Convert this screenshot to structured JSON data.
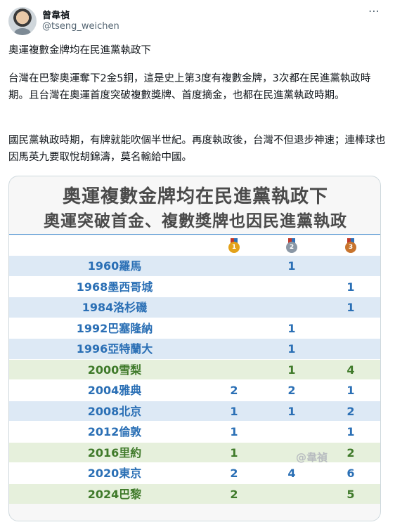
{
  "author": {
    "display_name": "曾韋禎",
    "handle": "@tseng_weichen"
  },
  "more_icon": "more-horizontal-icon",
  "tweet": {
    "line1": "奧運複數金牌均在民進黨執政下",
    "paragraph2": "台灣在巴黎奧運奪下2金5銅，這是史上第3度有複數金牌，3次都在民進黨執政時期。且台灣在奧運首度突破複數獎牌、首度摘金，也都在民進黨執政時期。",
    "paragraph3": "國民黨執政時期，有牌就能吹個半世紀。再度執政後，台灣不但退步神速；連棒球也因馬英九要取悅胡錦濤，莫名輸給中國。"
  },
  "card": {
    "title1": "奧運複數金牌均在民進黨執政下",
    "title2": "奧運突破首金、複數獎牌也因民進黨執政",
    "watermark": "@韋禎",
    "medal_icons": [
      "gold-medal-icon",
      "silver-medal-icon",
      "bronze-medal-icon"
    ],
    "colors": {
      "kmt_row": "#dde9f5",
      "dpp_row": "#e6f0dc",
      "kmt_text": "#2a6fb5",
      "dpp_text": "#3f7a2a"
    },
    "rows": [
      {
        "games": "1960羅馬",
        "gold": "",
        "silver": "1",
        "bronze": "",
        "style": "blue"
      },
      {
        "games": "1968墨西哥城",
        "gold": "",
        "silver": "",
        "bronze": "1",
        "style": "white"
      },
      {
        "games": "1984洛杉磯",
        "gold": "",
        "silver": "",
        "bronze": "1",
        "style": "blue"
      },
      {
        "games": "1992巴塞隆納",
        "gold": "",
        "silver": "1",
        "bronze": "",
        "style": "white"
      },
      {
        "games": "1996亞特蘭大",
        "gold": "",
        "silver": "1",
        "bronze": "",
        "style": "blue"
      },
      {
        "games": "2000雪梨",
        "gold": "",
        "silver": "1",
        "bronze": "4",
        "style": "green"
      },
      {
        "games": "2004雅典",
        "gold": "2",
        "silver": "2",
        "bronze": "1",
        "style": "white"
      },
      {
        "games": "2008北京",
        "gold": "1",
        "silver": "1",
        "bronze": "2",
        "style": "blue"
      },
      {
        "games": "2012倫敦",
        "gold": "1",
        "silver": "",
        "bronze": "1",
        "style": "white"
      },
      {
        "games": "2016里約",
        "gold": "1",
        "silver": "",
        "bronze": "2",
        "style": "green"
      },
      {
        "games": "2020東京",
        "gold": "2",
        "silver": "4",
        "bronze": "6",
        "style": "white"
      },
      {
        "games": "2024巴黎",
        "gold": "2",
        "silver": "",
        "bronze": "5",
        "style": "green"
      }
    ]
  }
}
